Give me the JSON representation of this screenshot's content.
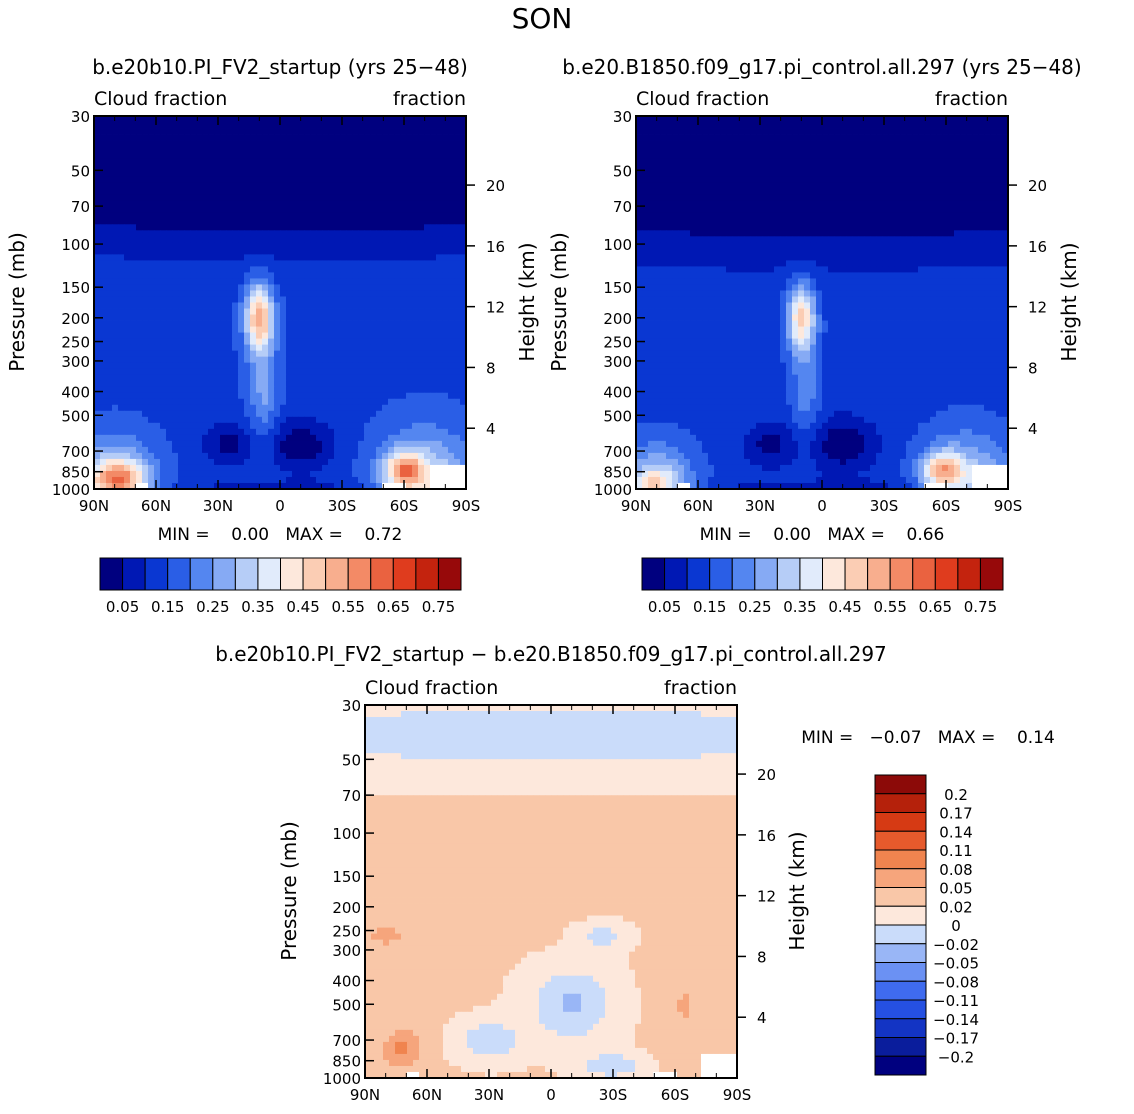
{
  "title": "SON",
  "colors": {
    "cloud_scale": [
      "#00007f",
      "#0018b4",
      "#0a37d2",
      "#2a5ee6",
      "#5486f0",
      "#86aaf4",
      "#b6cdf7",
      "#e1ebfb",
      "#fde8dc",
      "#fbcdb4",
      "#f8ae8e",
      "#f38a66",
      "#ea6240",
      "#df3c1e",
      "#c4230e",
      "#97090a"
    ],
    "diff_scale": [
      "#00007f",
      "#0a1d9c",
      "#1334c4",
      "#2550e2",
      "#3f6bef",
      "#6b91f3",
      "#99b6f6",
      "#cadcfa",
      "#fde8dc",
      "#f9c7a8",
      "#f6a57c",
      "#f0844f",
      "#e65a2c",
      "#d63a14",
      "#b5210b",
      "#8c0a08"
    ],
    "missing": "#ffffff"
  },
  "axes_text": {
    "pressure_label": "Pressure (mb)",
    "height_label": "Height (km)",
    "left_corner": "Cloud fraction",
    "right_corner": "fraction"
  },
  "chart_data": [
    {
      "type": "heatmap",
      "id": "model",
      "title": "b.e20b10.PI_FV2_startup (yrs 25−48)",
      "left_string": "Cloud fraction",
      "right_string": "fraction",
      "xlabel": "",
      "ylabel": "Pressure (mb)",
      "y2label": "Height (km)",
      "xticks": [
        "90N",
        "60N",
        "30N",
        "0",
        "30S",
        "60S",
        "90S"
      ],
      "xtick_values": [
        90,
        60,
        30,
        0,
        -30,
        -60,
        -90
      ],
      "yticks": [
        "30",
        "50",
        "70",
        "100",
        "150",
        "200",
        "250",
        "300",
        "400",
        "500",
        "700",
        "850",
        "1000"
      ],
      "ytick_values": [
        30,
        50,
        70,
        100,
        150,
        200,
        250,
        300,
        400,
        500,
        700,
        850,
        1000
      ],
      "y2ticks": [
        "4",
        "8",
        "12",
        "16",
        "20"
      ],
      "y2tick_values": [
        4,
        8,
        12,
        16,
        20
      ],
      "xlim": [
        90,
        -90
      ],
      "ylim": [
        1000,
        30
      ],
      "log_y": true,
      "levels": [
        0.05,
        0.1,
        0.15,
        0.2,
        0.25,
        0.3,
        0.35,
        0.4,
        0.45,
        0.5,
        0.55,
        0.6,
        0.65,
        0.7,
        0.75
      ],
      "label_bar": [
        "0.05",
        "0.15",
        "0.25",
        "0.35",
        "0.45",
        "0.55",
        "0.65",
        "0.75"
      ],
      "min_text": "MIN =    0.00   MAX =    0.72",
      "min": 0.0,
      "max": 0.72
    },
    {
      "type": "heatmap",
      "id": "control",
      "title": "b.e20.B1850.f09_g17.pi_control.all.297 (yrs 25−48)",
      "left_string": "Cloud fraction",
      "right_string": "fraction",
      "xlabel": "",
      "ylabel": "Pressure (mb)",
      "y2label": "Height (km)",
      "xticks": [
        "90N",
        "60N",
        "30N",
        "0",
        "30S",
        "60S",
        "90S"
      ],
      "xtick_values": [
        90,
        60,
        30,
        0,
        -30,
        -60,
        -90
      ],
      "yticks": [
        "30",
        "50",
        "70",
        "100",
        "150",
        "200",
        "250",
        "300",
        "400",
        "500",
        "700",
        "850",
        "1000"
      ],
      "ytick_values": [
        30,
        50,
        70,
        100,
        150,
        200,
        250,
        300,
        400,
        500,
        700,
        850,
        1000
      ],
      "y2ticks": [
        "4",
        "8",
        "12",
        "16",
        "20"
      ],
      "y2tick_values": [
        4,
        8,
        12,
        16,
        20
      ],
      "xlim": [
        90,
        -90
      ],
      "ylim": [
        1000,
        30
      ],
      "log_y": true,
      "levels": [
        0.05,
        0.1,
        0.15,
        0.2,
        0.25,
        0.3,
        0.35,
        0.4,
        0.45,
        0.5,
        0.55,
        0.6,
        0.65,
        0.7,
        0.75
      ],
      "label_bar": [
        "0.05",
        "0.15",
        "0.25",
        "0.35",
        "0.45",
        "0.55",
        "0.65",
        "0.75"
      ],
      "min_text": "MIN =    0.00   MAX =    0.66",
      "min": 0.0,
      "max": 0.66
    },
    {
      "type": "heatmap",
      "id": "difference",
      "title": "b.e20b10.PI_FV2_startup − b.e20.B1850.f09_g17.pi_control.all.297",
      "left_string": "Cloud fraction",
      "right_string": "fraction",
      "xlabel": "",
      "ylabel": "Pressure (mb)",
      "y2label": "Height (km)",
      "xticks": [
        "90N",
        "60N",
        "30N",
        "0",
        "30S",
        "60S",
        "90S"
      ],
      "xtick_values": [
        90,
        60,
        30,
        0,
        -30,
        -60,
        -90
      ],
      "yticks": [
        "30",
        "50",
        "70",
        "100",
        "150",
        "200",
        "250",
        "300",
        "400",
        "500",
        "700",
        "850",
        "1000"
      ],
      "ytick_values": [
        30,
        50,
        70,
        100,
        150,
        200,
        250,
        300,
        400,
        500,
        700,
        850,
        1000
      ],
      "y2ticks": [
        "4",
        "8",
        "12",
        "16",
        "20"
      ],
      "y2tick_values": [
        4,
        8,
        12,
        16,
        20
      ],
      "xlim": [
        90,
        -90
      ],
      "ylim": [
        1000,
        30
      ],
      "log_y": true,
      "levels": [
        -0.2,
        -0.17,
        -0.14,
        -0.11,
        -0.08,
        -0.05,
        -0.02,
        0,
        0.02,
        0.05,
        0.08,
        0.11,
        0.14,
        0.17,
        0.2
      ],
      "label_bar": [
        "0.2",
        "0.17",
        "0.14",
        "0.11",
        "0.08",
        "0.05",
        "0.02",
        "0",
        "−0.02",
        "−0.05",
        "−0.08",
        "−0.11",
        "−0.14",
        "−0.17",
        "−0.2"
      ],
      "min_text": "MIN =   −0.07   MAX =    0.14",
      "min": -0.07,
      "max": 0.14
    }
  ]
}
